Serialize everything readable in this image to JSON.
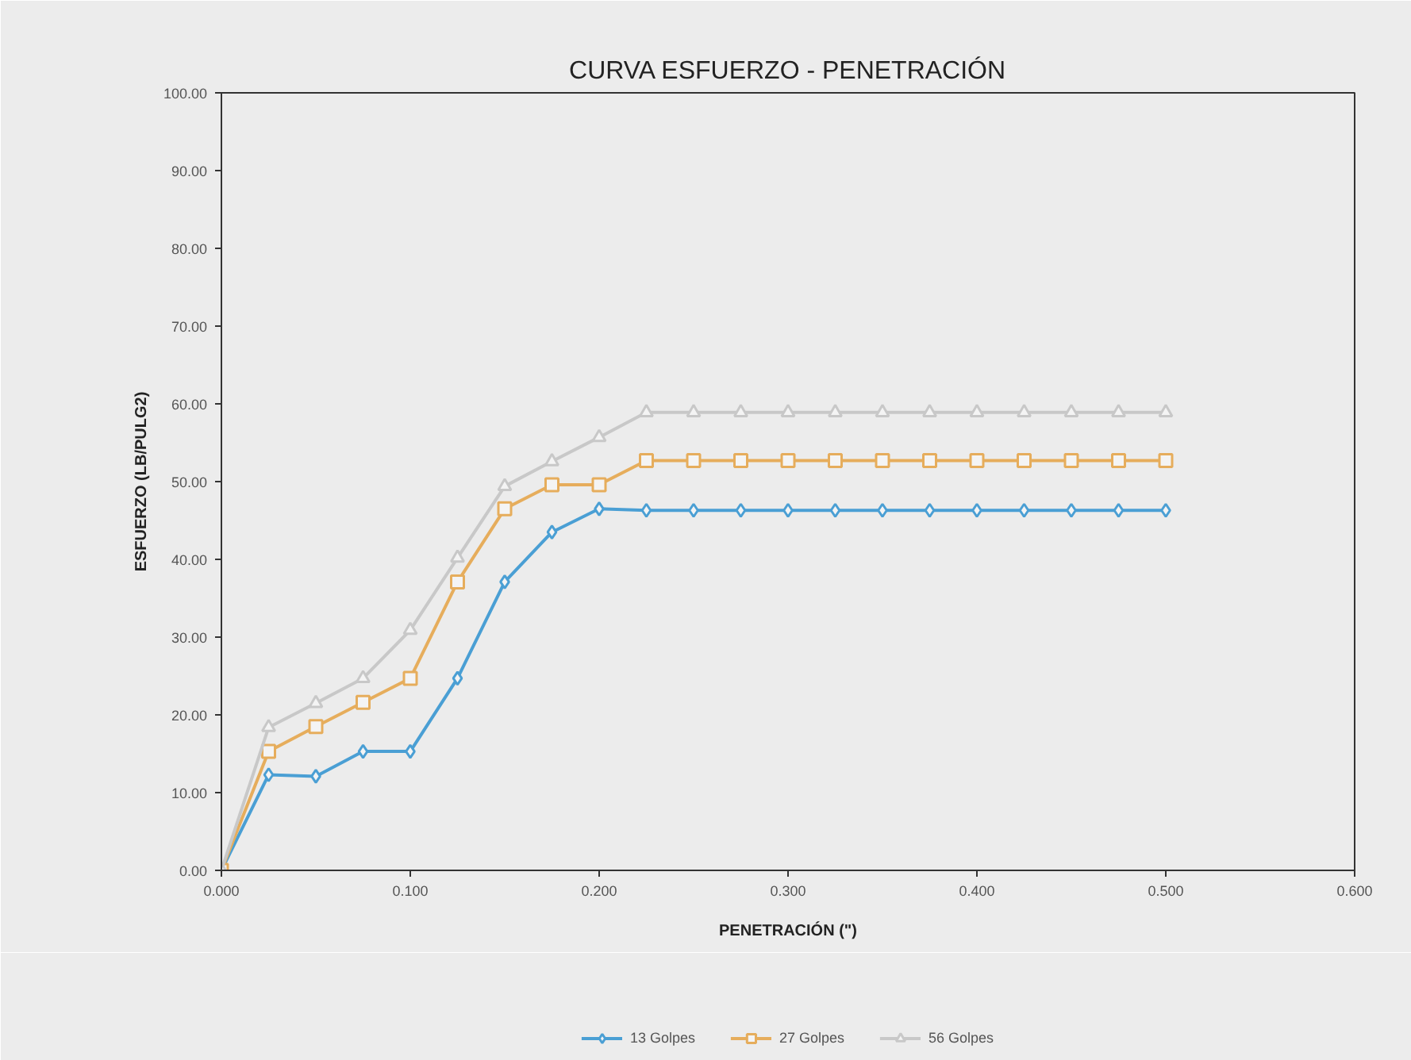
{
  "chart_data": {
    "type": "line",
    "title": "CURVA ESFUERZO - PENETRACIÓN",
    "xlabel": "PENETRACIÓN (\")",
    "ylabel": "ESFUERZO (LB/PULG2)",
    "x": [
      0,
      0.025,
      0.05,
      0.075,
      0.1,
      0.125,
      0.15,
      0.175,
      0.2,
      0.225,
      0.25,
      0.275,
      0.3,
      0.325,
      0.35,
      0.375,
      0.4,
      0.425,
      0.45,
      0.475,
      0.5
    ],
    "series": [
      {
        "name": "13 Golpes",
        "color": "#4a9fd4",
        "marker": "diamond",
        "values": [
          0,
          12.3,
          12.1,
          15.3,
          15.3,
          24.7,
          37.1,
          43.5,
          46.5,
          46.3,
          46.3,
          46.3,
          46.3,
          46.3,
          46.3,
          46.3,
          46.3,
          46.3,
          46.3,
          46.3,
          46.3
        ]
      },
      {
        "name": "27 Golpes",
        "color": "#e6ad5c",
        "marker": "square",
        "values": [
          0,
          15.3,
          18.5,
          21.6,
          24.7,
          37.1,
          46.5,
          49.6,
          49.6,
          52.7,
          52.7,
          52.7,
          52.7,
          52.7,
          52.7,
          52.7,
          52.7,
          52.7,
          52.7,
          52.7,
          52.7
        ]
      },
      {
        "name": "56 Golpes",
        "color": "#c8c8c8",
        "marker": "triangle",
        "values": [
          0,
          18.4,
          21.5,
          24.7,
          30.9,
          40.2,
          49.4,
          52.6,
          55.7,
          58.9,
          58.9,
          58.9,
          58.9,
          58.9,
          58.9,
          58.9,
          58.9,
          58.9,
          58.9,
          58.9,
          58.9
        ]
      }
    ],
    "xlim": [
      0,
      0.6
    ],
    "ylim": [
      0,
      100
    ],
    "xticks": [
      {
        "value": 0,
        "label": "0.000"
      },
      {
        "value": 0.1,
        "label": "0.100"
      },
      {
        "value": 0.2,
        "label": "0.200"
      },
      {
        "value": 0.3,
        "label": "0.300"
      },
      {
        "value": 0.4,
        "label": "0.400"
      },
      {
        "value": 0.5,
        "label": "0.500"
      },
      {
        "value": 0.6,
        "label": "0.600"
      }
    ],
    "yticks": [
      {
        "value": 0,
        "label": "0.00"
      },
      {
        "value": 10,
        "label": "10.00"
      },
      {
        "value": 20,
        "label": "20.00"
      },
      {
        "value": 30,
        "label": "30.00"
      },
      {
        "value": 40,
        "label": "40.00"
      },
      {
        "value": 50,
        "label": "50.00"
      },
      {
        "value": 60,
        "label": "60.00"
      },
      {
        "value": 70,
        "label": "70.00"
      },
      {
        "value": 80,
        "label": "80.00"
      },
      {
        "value": 90,
        "label": "90.00"
      },
      {
        "value": 100,
        "label": "100.00"
      }
    ],
    "grid": false,
    "legend": "bottom",
    "line_style": "solid"
  }
}
